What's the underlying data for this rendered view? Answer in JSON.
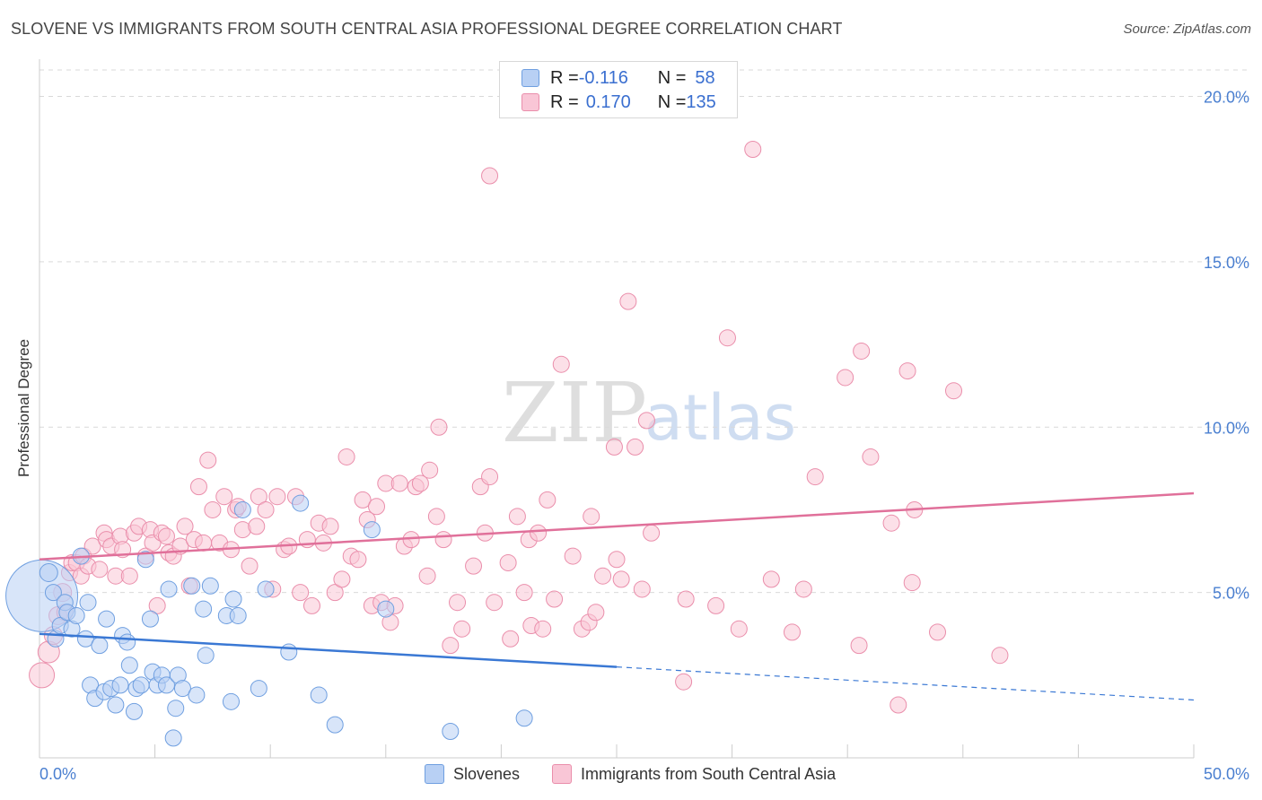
{
  "title": "SLOVENE VS IMMIGRANTS FROM SOUTH CENTRAL ASIA PROFESSIONAL DEGREE CORRELATION CHART",
  "source": "Source: ZipAtlas.com",
  "watermark": {
    "zip": "ZIP",
    "atlas": "atlas"
  },
  "legend": {
    "rows": [
      {
        "r_label": "R = ",
        "r_value": "-0.116",
        "n_label": "N = ",
        "n_value": "58"
      },
      {
        "r_label": "R = ",
        "r_value": "0.170",
        "n_label": "N = ",
        "n_value": "135"
      }
    ]
  },
  "colors": {
    "blue_fill": "#b8d0f4",
    "blue_stroke": "#6f9fe0",
    "blue_line": "#3a78d4",
    "pink_fill": "#f9c6d6",
    "pink_stroke": "#ea8eab",
    "pink_line": "#e0709a",
    "tick_label": "#4a7fd0",
    "grid": "#d9d9d9"
  },
  "chart_data": {
    "type": "scatter",
    "title": "SLOVENE VS IMMIGRANTS FROM SOUTH CENTRAL ASIA PROFESSIONAL DEGREE CORRELATION CHART",
    "xlabel": "",
    "ylabel": "Professional Degree",
    "xlim": [
      0,
      50
    ],
    "ylim": [
      0,
      20.8
    ],
    "x_tick_labels": [
      "0.0%",
      "50.0%"
    ],
    "y_ticks": [
      5,
      10,
      15,
      20
    ],
    "y_tick_labels": [
      "5.0%",
      "10.0%",
      "15.0%",
      "20.0%"
    ],
    "grid": "horizontal dashed",
    "legend_position": "bottom",
    "series": [
      {
        "name": "Slovenes",
        "color": "#6f9fe0",
        "points": [
          [
            0.1,
            4.9,
            40
          ],
          [
            0.4,
            5.6,
            10
          ],
          [
            0.6,
            5.0,
            9
          ],
          [
            0.7,
            3.6,
            9
          ],
          [
            0.9,
            4.0,
            9
          ],
          [
            1.1,
            4.7,
            9
          ],
          [
            1.2,
            4.4,
            9
          ],
          [
            1.4,
            3.9,
            9
          ],
          [
            1.6,
            4.3,
            9
          ],
          [
            1.8,
            6.1,
            9
          ],
          [
            2.0,
            3.6,
            9
          ],
          [
            2.1,
            4.7,
            9
          ],
          [
            2.2,
            2.2,
            9
          ],
          [
            2.4,
            1.8,
            9
          ],
          [
            2.6,
            3.4,
            9
          ],
          [
            2.8,
            2.0,
            9
          ],
          [
            2.9,
            4.2,
            9
          ],
          [
            3.1,
            2.1,
            9
          ],
          [
            3.3,
            1.6,
            9
          ],
          [
            3.5,
            2.2,
            9
          ],
          [
            3.6,
            3.7,
            9
          ],
          [
            3.8,
            3.5,
            9
          ],
          [
            3.9,
            2.8,
            9
          ],
          [
            4.1,
            1.4,
            9
          ],
          [
            4.2,
            2.1,
            9
          ],
          [
            4.4,
            2.2,
            9
          ],
          [
            4.6,
            6.0,
            9
          ],
          [
            4.8,
            4.2,
            9
          ],
          [
            4.9,
            2.6,
            9
          ],
          [
            5.1,
            2.2,
            9
          ],
          [
            5.3,
            2.5,
            9
          ],
          [
            5.5,
            2.2,
            9
          ],
          [
            5.6,
            5.1,
            9
          ],
          [
            5.8,
            0.6,
            9
          ],
          [
            5.9,
            1.5,
            9
          ],
          [
            6.0,
            2.5,
            9
          ],
          [
            6.2,
            2.1,
            9
          ],
          [
            6.6,
            5.2,
            9
          ],
          [
            6.8,
            1.9,
            9
          ],
          [
            7.1,
            4.5,
            9
          ],
          [
            7.2,
            3.1,
            9
          ],
          [
            7.4,
            5.2,
            9
          ],
          [
            8.1,
            4.3,
            9
          ],
          [
            8.3,
            1.7,
            9
          ],
          [
            8.4,
            4.8,
            9
          ],
          [
            8.6,
            4.3,
            9
          ],
          [
            8.8,
            7.5,
            9
          ],
          [
            9.5,
            2.1,
            9
          ],
          [
            9.8,
            5.1,
            9
          ],
          [
            10.8,
            3.2,
            9
          ],
          [
            11.3,
            7.7,
            9
          ],
          [
            12.1,
            1.9,
            9
          ],
          [
            12.8,
            1.0,
            9
          ],
          [
            14.4,
            6.9,
            9
          ],
          [
            15.0,
            4.5,
            9
          ],
          [
            17.8,
            0.8,
            9
          ],
          [
            21.0,
            1.2,
            9
          ]
        ]
      },
      {
        "name": "Immigrants from South Central Asia",
        "color": "#ea8eab",
        "points": [
          [
            0.1,
            2.5,
            14
          ],
          [
            0.4,
            3.2,
            12
          ],
          [
            0.6,
            3.7,
            10
          ],
          [
            0.8,
            4.3,
            10
          ],
          [
            1.0,
            5.0,
            10
          ],
          [
            1.1,
            4.4,
            9
          ],
          [
            1.3,
            5.6,
            9
          ],
          [
            1.4,
            5.9,
            9
          ],
          [
            1.6,
            5.9,
            9
          ],
          [
            1.8,
            5.5,
            9
          ],
          [
            1.9,
            6.1,
            9
          ],
          [
            2.1,
            5.8,
            9
          ],
          [
            2.3,
            6.4,
            9
          ],
          [
            2.6,
            5.7,
            9
          ],
          [
            2.8,
            6.8,
            9
          ],
          [
            2.9,
            6.6,
            9
          ],
          [
            3.1,
            6.4,
            9
          ],
          [
            3.3,
            5.5,
            9
          ],
          [
            3.5,
            6.7,
            9
          ],
          [
            3.6,
            6.3,
            9
          ],
          [
            3.9,
            5.5,
            9
          ],
          [
            4.1,
            6.8,
            9
          ],
          [
            4.3,
            7.0,
            9
          ],
          [
            4.6,
            6.1,
            9
          ],
          [
            4.8,
            6.9,
            9
          ],
          [
            4.9,
            6.5,
            9
          ],
          [
            5.1,
            4.6,
            9
          ],
          [
            5.3,
            6.8,
            9
          ],
          [
            5.5,
            6.7,
            9
          ],
          [
            5.6,
            6.2,
            9
          ],
          [
            5.8,
            6.1,
            9
          ],
          [
            6.1,
            6.4,
            9
          ],
          [
            6.3,
            7.0,
            9
          ],
          [
            6.5,
            5.2,
            9
          ],
          [
            6.7,
            6.6,
            9
          ],
          [
            6.9,
            8.2,
            9
          ],
          [
            7.1,
            6.5,
            9
          ],
          [
            7.3,
            9.0,
            9
          ],
          [
            7.5,
            7.5,
            9
          ],
          [
            7.8,
            6.5,
            9
          ],
          [
            8.0,
            7.9,
            9
          ],
          [
            8.3,
            6.3,
            9
          ],
          [
            8.5,
            7.5,
            9
          ],
          [
            8.6,
            7.6,
            9
          ],
          [
            8.8,
            6.9,
            9
          ],
          [
            9.1,
            5.8,
            9
          ],
          [
            9.4,
            7.0,
            9
          ],
          [
            9.5,
            7.9,
            9
          ],
          [
            9.8,
            7.5,
            9
          ],
          [
            10.1,
            5.1,
            9
          ],
          [
            10.3,
            7.9,
            9
          ],
          [
            10.6,
            6.3,
            9
          ],
          [
            10.8,
            6.4,
            9
          ],
          [
            11.1,
            7.9,
            9
          ],
          [
            11.3,
            5.0,
            9
          ],
          [
            11.6,
            6.6,
            9
          ],
          [
            11.8,
            4.6,
            9
          ],
          [
            12.1,
            7.1,
            9
          ],
          [
            12.3,
            6.5,
            9
          ],
          [
            12.6,
            7.0,
            9
          ],
          [
            12.8,
            5.0,
            9
          ],
          [
            13.1,
            5.4,
            9
          ],
          [
            13.3,
            9.1,
            9
          ],
          [
            13.5,
            6.1,
            9
          ],
          [
            13.8,
            6.0,
            9
          ],
          [
            14.0,
            7.8,
            9
          ],
          [
            14.2,
            7.2,
            9
          ],
          [
            14.4,
            4.6,
            9
          ],
          [
            14.6,
            7.6,
            9
          ],
          [
            14.8,
            4.7,
            9
          ],
          [
            15.0,
            8.3,
            9
          ],
          [
            15.2,
            4.1,
            9
          ],
          [
            15.4,
            4.6,
            9
          ],
          [
            15.6,
            8.3,
            9
          ],
          [
            15.8,
            6.4,
            9
          ],
          [
            16.1,
            6.6,
            9
          ],
          [
            16.3,
            8.2,
            9
          ],
          [
            16.5,
            8.3,
            9
          ],
          [
            16.8,
            5.5,
            9
          ],
          [
            16.9,
            8.7,
            9
          ],
          [
            17.2,
            7.3,
            9
          ],
          [
            17.3,
            10.0,
            9
          ],
          [
            17.5,
            6.6,
            9
          ],
          [
            17.8,
            3.4,
            9
          ],
          [
            18.1,
            4.7,
            9
          ],
          [
            18.3,
            3.9,
            9
          ],
          [
            18.8,
            5.8,
            9
          ],
          [
            19.1,
            8.2,
            9
          ],
          [
            19.3,
            6.8,
            9
          ],
          [
            19.5,
            8.5,
            9
          ],
          [
            19.7,
            4.7,
            9
          ],
          [
            19.5,
            17.6,
            9
          ],
          [
            20.3,
            5.9,
            9
          ],
          [
            20.4,
            3.6,
            9
          ],
          [
            20.7,
            7.3,
            9
          ],
          [
            21.0,
            5.0,
            9
          ],
          [
            21.2,
            6.6,
            9
          ],
          [
            21.3,
            4.0,
            9
          ],
          [
            21.6,
            6.8,
            9
          ],
          [
            21.8,
            3.9,
            9
          ],
          [
            22.0,
            7.8,
            9
          ],
          [
            22.3,
            4.8,
            9
          ],
          [
            22.6,
            11.9,
            9
          ],
          [
            23.1,
            6.1,
            9
          ],
          [
            23.5,
            3.9,
            9
          ],
          [
            23.8,
            4.1,
            9
          ],
          [
            23.9,
            7.3,
            9
          ],
          [
            24.1,
            4.4,
            9
          ],
          [
            24.4,
            5.5,
            9
          ],
          [
            24.9,
            9.4,
            9
          ],
          [
            25.0,
            6.0,
            9
          ],
          [
            25.2,
            5.4,
            9
          ],
          [
            25.5,
            13.8,
            9
          ],
          [
            25.8,
            9.4,
            9
          ],
          [
            26.1,
            5.1,
            9
          ],
          [
            26.3,
            10.2,
            9
          ],
          [
            26.5,
            6.8,
            9
          ],
          [
            27.9,
            2.3,
            9
          ],
          [
            28.0,
            4.8,
            9
          ],
          [
            29.3,
            4.6,
            9
          ],
          [
            29.8,
            12.7,
            9
          ],
          [
            30.3,
            3.9,
            9
          ],
          [
            30.9,
            18.4,
            9
          ],
          [
            31.7,
            5.4,
            9
          ],
          [
            32.6,
            3.8,
            9
          ],
          [
            33.1,
            5.1,
            9
          ],
          [
            33.6,
            8.5,
            9
          ],
          [
            34.9,
            11.5,
            9
          ],
          [
            35.5,
            3.4,
            9
          ],
          [
            35.6,
            12.3,
            9
          ],
          [
            36.0,
            9.1,
            9
          ],
          [
            36.9,
            7.1,
            9
          ],
          [
            37.2,
            1.6,
            9
          ],
          [
            37.6,
            11.7,
            9
          ],
          [
            37.8,
            5.3,
            9
          ],
          [
            37.9,
            7.5,
            9
          ],
          [
            38.9,
            3.8,
            9
          ],
          [
            39.6,
            11.1,
            9
          ],
          [
            41.6,
            3.1,
            9
          ]
        ]
      }
    ],
    "trend_lines": [
      {
        "series": "Slovenes",
        "solid": [
          [
            0,
            3.75
          ],
          [
            25,
            2.75
          ]
        ],
        "dashed": [
          [
            25,
            2.75
          ],
          [
            50,
            1.75
          ]
        ]
      },
      {
        "series": "Immigrants from South Central Asia",
        "solid": [
          [
            0,
            6.0
          ],
          [
            50,
            8.0
          ]
        ]
      }
    ]
  }
}
